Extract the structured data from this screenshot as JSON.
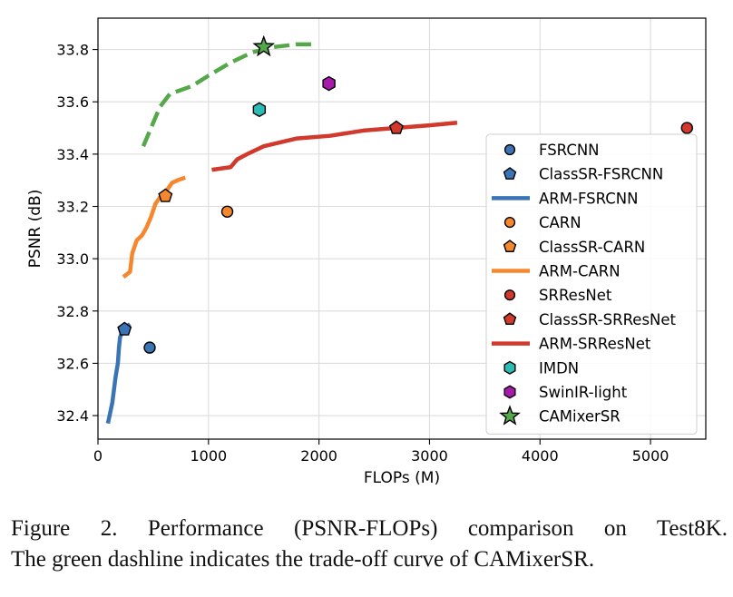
{
  "chart_data": {
    "type": "line",
    "title": "",
    "xlabel": "FLOPs (M)",
    "ylabel": "PSNR (dB)",
    "xlim": [
      0,
      5500
    ],
    "ylim": [
      32.31,
      33.92
    ],
    "xticks": [
      0,
      1000,
      2000,
      3000,
      4000,
      5000
    ],
    "yticks": [
      32.4,
      32.6,
      32.8,
      33.0,
      33.2,
      33.4,
      33.6,
      33.8
    ],
    "xtick_labels": [
      "0",
      "1000",
      "2000",
      "3000",
      "4000",
      "5000"
    ],
    "ytick_labels": [
      "32.4",
      "32.6",
      "32.8",
      "33.0",
      "33.2",
      "33.4",
      "33.6",
      "33.8"
    ],
    "grid": true,
    "legend_position": "center-right",
    "colors": {
      "blue": "#3a74b4",
      "orange": "#f5872f",
      "red": "#d0392b",
      "teal": "#2cbcb6",
      "purple": "#a61aac",
      "green": "#55a849"
    },
    "series": [
      {
        "name": "FSRCNN",
        "kind": "marker",
        "marker": "circle",
        "color": "#3a74b4",
        "points": [
          [
            468,
            32.66
          ]
        ]
      },
      {
        "name": "ClassSR-FSRCNN",
        "kind": "marker",
        "marker": "pentagon",
        "color": "#3a74b4",
        "points": [
          [
            240,
            32.73
          ]
        ]
      },
      {
        "name": "ARM-FSRCNN",
        "kind": "line",
        "style": "solid",
        "color": "#3a74b4",
        "points": [
          [
            90,
            32.37
          ],
          [
            130,
            32.45
          ],
          [
            160,
            32.55
          ],
          [
            180,
            32.6
          ],
          [
            190,
            32.66
          ],
          [
            200,
            32.7
          ],
          [
            230,
            32.73
          ],
          [
            260,
            32.74
          ],
          [
            290,
            32.75
          ]
        ]
      },
      {
        "name": "CARN",
        "kind": "marker",
        "marker": "circle",
        "color": "#f5872f",
        "points": [
          [
            1170,
            33.18
          ]
        ]
      },
      {
        "name": "ClassSR-CARN",
        "kind": "marker",
        "marker": "pentagon",
        "color": "#f5872f",
        "points": [
          [
            610,
            33.24
          ]
        ]
      },
      {
        "name": "ARM-CARN",
        "kind": "line",
        "style": "solid",
        "color": "#f5872f",
        "points": [
          [
            230,
            32.93
          ],
          [
            290,
            32.95
          ],
          [
            310,
            33.02
          ],
          [
            350,
            33.07
          ],
          [
            400,
            33.09
          ],
          [
            440,
            33.12
          ],
          [
            480,
            33.16
          ],
          [
            520,
            33.21
          ],
          [
            570,
            33.24
          ],
          [
            620,
            33.26
          ],
          [
            670,
            33.29
          ],
          [
            720,
            33.3
          ],
          [
            790,
            33.31
          ]
        ]
      },
      {
        "name": "SRResNet",
        "kind": "marker",
        "marker": "circle",
        "color": "#d0392b",
        "points": [
          [
            5330,
            33.5
          ]
        ]
      },
      {
        "name": "ClassSR-SRResNet",
        "kind": "marker",
        "marker": "pentagon",
        "color": "#d0392b",
        "points": [
          [
            2700,
            33.5
          ]
        ]
      },
      {
        "name": "ARM-SRResNet",
        "kind": "line",
        "style": "solid",
        "color": "#d0392b",
        "points": [
          [
            1030,
            33.34
          ],
          [
            1200,
            33.35
          ],
          [
            1260,
            33.38
          ],
          [
            1350,
            33.4
          ],
          [
            1500,
            33.43
          ],
          [
            1800,
            33.46
          ],
          [
            2100,
            33.47
          ],
          [
            2400,
            33.49
          ],
          [
            2700,
            33.5
          ],
          [
            3000,
            33.51
          ],
          [
            3250,
            33.52
          ]
        ]
      },
      {
        "name": "IMDN",
        "kind": "marker",
        "marker": "hexagon",
        "color": "#2cbcb6",
        "points": [
          [
            1460,
            33.57
          ]
        ]
      },
      {
        "name": "SwinIR-light",
        "kind": "marker",
        "marker": "hexagon",
        "color": "#a61aac",
        "points": [
          [
            2090,
            33.67
          ]
        ]
      },
      {
        "name": "CAMixerSR",
        "kind": "marker",
        "marker": "star",
        "color": "#55a849",
        "points": [
          [
            1500,
            33.81
          ]
        ]
      },
      {
        "name": "CAMixerSR trade-off",
        "kind": "line",
        "style": "dashed",
        "color": "#55a849",
        "in_legend": false,
        "points": [
          [
            410,
            33.43
          ],
          [
            500,
            33.52
          ],
          [
            560,
            33.58
          ],
          [
            650,
            33.63
          ],
          [
            850,
            33.66
          ],
          [
            1000,
            33.7
          ],
          [
            1200,
            33.75
          ],
          [
            1400,
            33.79
          ],
          [
            1600,
            33.81
          ],
          [
            1800,
            33.82
          ],
          [
            1970,
            33.82
          ]
        ]
      }
    ]
  },
  "caption": {
    "line1": "Figure 2.  Performance (PSNR-FLOPs) comparison on Test8K.",
    "line2": "The green dashline indicates the trade-off curve of CAMixerSR."
  }
}
